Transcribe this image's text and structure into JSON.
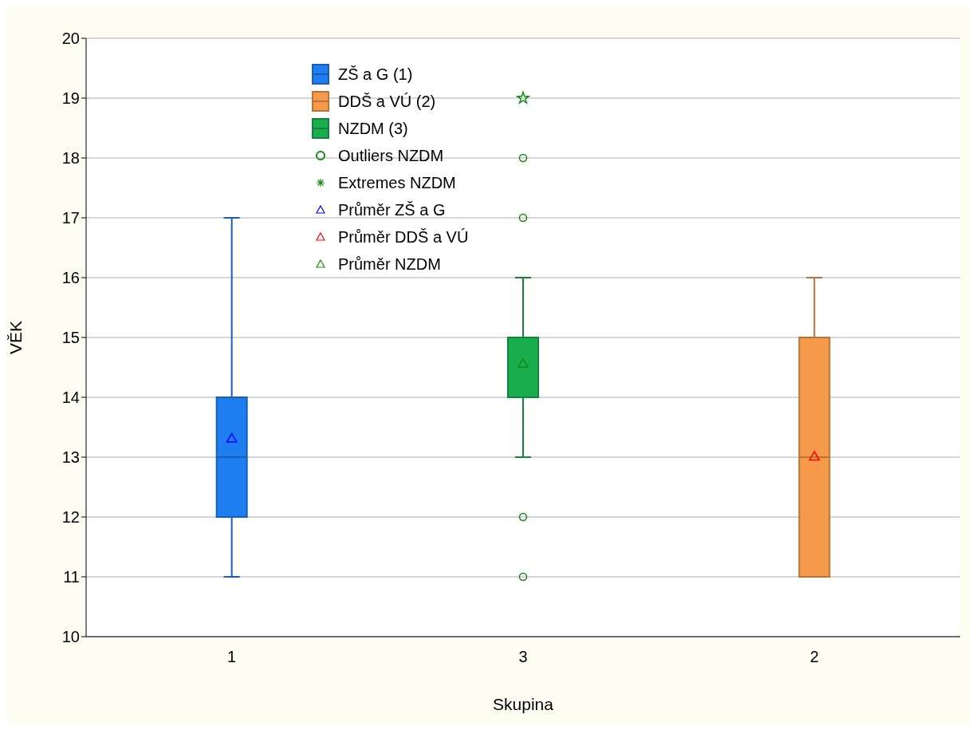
{
  "chart_data": {
    "type": "box",
    "xlabel": "Skupina",
    "ylabel": "VĚK",
    "categories": [
      "1",
      "3",
      "2"
    ],
    "ylim": [
      10,
      20
    ],
    "yticks": [
      10,
      11,
      12,
      13,
      14,
      15,
      16,
      17,
      18,
      19,
      20
    ],
    "grid": "y",
    "legend": "top left",
    "series": [
      {
        "name": "ZŠ a G (1)",
        "type": "box",
        "color": "#1e7ef0",
        "boxes": [
          {
            "low": 11,
            "q1": 12,
            "median": 13,
            "q3": 14,
            "high": 17
          },
          null,
          null
        ]
      },
      {
        "name": "DDŠ a VÚ (2)",
        "type": "box",
        "color": "#f5994a",
        "boxes": [
          null,
          null,
          {
            "low": 11,
            "q1": 11,
            "median": 13,
            "q3": 15,
            "high": 16
          }
        ]
      },
      {
        "name": "NZDM (3)",
        "type": "box",
        "color": "#1aad4e",
        "boxes": [
          null,
          {
            "low": 13,
            "q1": 14,
            "median": 14,
            "q3": 15,
            "high": 16
          },
          null
        ]
      },
      {
        "name": "Outliers NZDM",
        "type": "scatter",
        "marker": "circle",
        "color": "#148a14",
        "x": [
          "3",
          "3",
          "3",
          "3"
        ],
        "values": [
          18,
          17,
          12,
          11
        ]
      },
      {
        "name": "Extremes NZDM",
        "type": "scatter",
        "marker": "star",
        "color": "#148a14",
        "x": [
          "3"
        ],
        "values": [
          19
        ]
      },
      {
        "name": "Průměr ZŠ a G",
        "type": "scatter",
        "marker": "triangle",
        "color": "#0000ff",
        "x": [
          "1"
        ],
        "values": [
          13.3
        ]
      },
      {
        "name": "Průměr DDŠ a VÚ",
        "type": "scatter",
        "marker": "triangle",
        "color": "#ff0000",
        "x": [
          "2"
        ],
        "values": [
          13
        ]
      },
      {
        "name": "Průměr NZDM",
        "type": "scatter",
        "marker": "triangle",
        "color": "#148a14",
        "x": [
          "3"
        ],
        "values": [
          14.55
        ]
      }
    ]
  }
}
